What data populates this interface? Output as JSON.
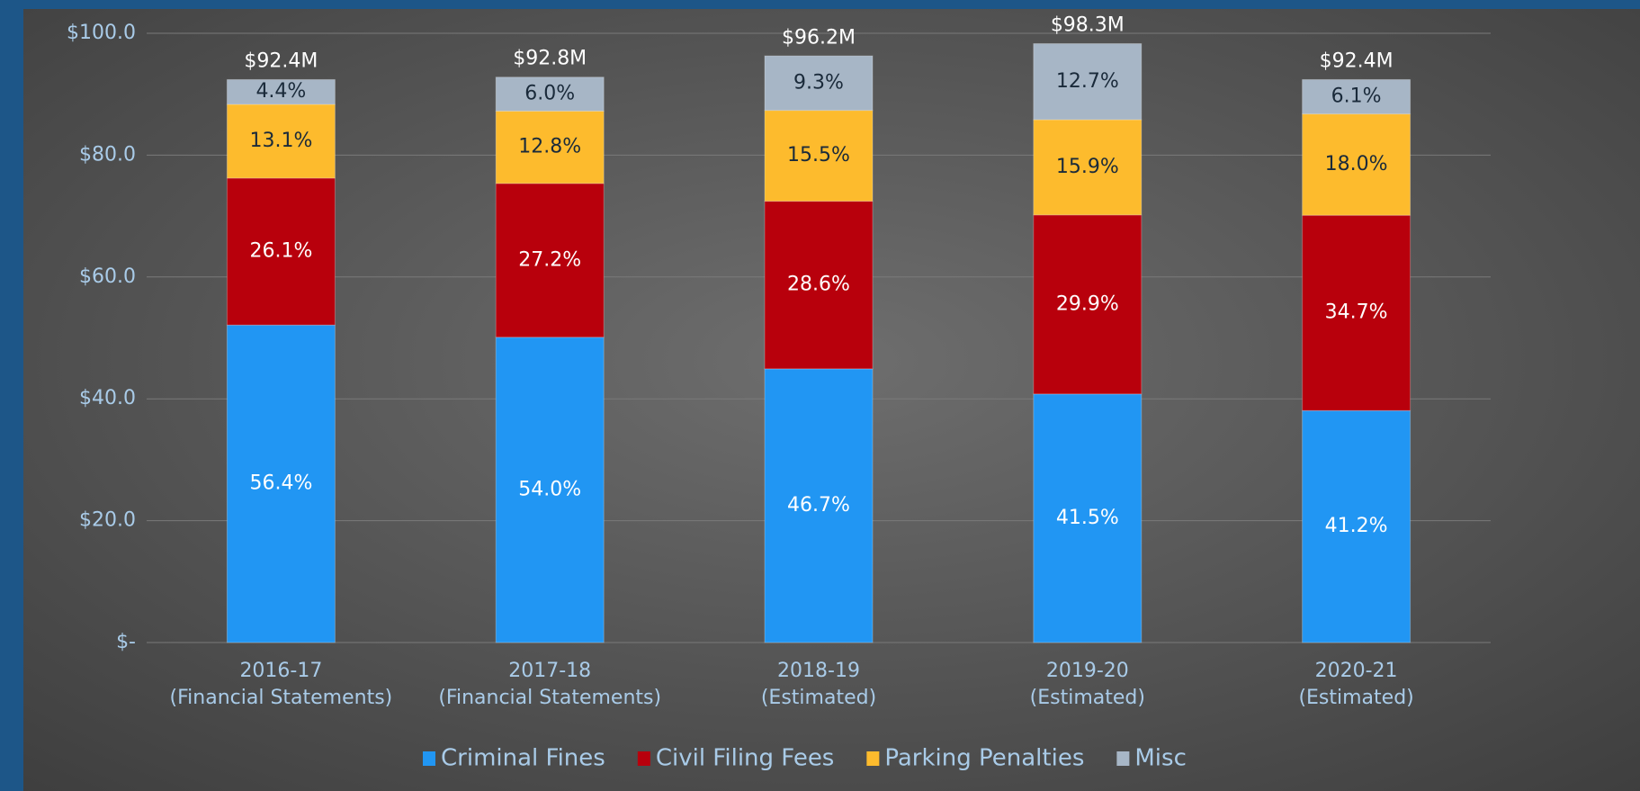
{
  "chart_data": {
    "type": "stacked_percent_bar",
    "categories": [
      [
        "2016-17",
        "(Financial Statements)"
      ],
      [
        "2017-18",
        "(Financial Statements)"
      ],
      [
        "2018-19",
        "(Estimated)"
      ],
      [
        "2019-20",
        "(Estimated)"
      ],
      [
        "2020-21",
        "(Estimated)"
      ]
    ],
    "totals": {
      "values": [
        92.4,
        92.8,
        96.2,
        98.3,
        92.4
      ],
      "value_labels": [
        "$92.4M",
        "$92.8M",
        "$96.2M",
        "$98.3M",
        "$92.4M"
      ]
    },
    "series": [
      {
        "name": "Criminal Fines",
        "color": "#2196f3",
        "label_color": "#ffffff",
        "values": [
          56.4,
          54.0,
          46.7,
          41.5,
          41.2
        ],
        "value_labels": [
          "56.4%",
          "54.0%",
          "46.7%",
          "41.5%",
          "41.2%"
        ]
      },
      {
        "name": "Civil Filing Fees",
        "color": "#b8000c",
        "label_color": "#ffffff",
        "values": [
          26.1,
          27.2,
          28.6,
          29.9,
          34.7
        ],
        "value_labels": [
          "26.1%",
          "27.2%",
          "28.6%",
          "29.9%",
          "34.7%"
        ]
      },
      {
        "name": "Parking Penalties",
        "color": "#fdbb2d",
        "label_color": "#1a2a3a",
        "values": [
          13.1,
          12.8,
          15.5,
          15.9,
          18.0
        ],
        "value_labels": [
          "13.1%",
          "12.8%",
          "15.5%",
          "15.9%",
          "18.0%"
        ]
      },
      {
        "name": "Misc",
        "color": "#a7b6c6",
        "label_color": "#1a2a3a",
        "values": [
          4.4,
          6.0,
          9.3,
          12.7,
          6.1
        ],
        "value_labels": [
          "4.4%",
          "6.0%",
          "9.3%",
          "12.7%",
          "6.1%"
        ]
      }
    ],
    "ylim": [
      0,
      100
    ],
    "yticks": [
      {
        "value": 0,
        "label": "$-"
      },
      {
        "value": 20,
        "label": "$20.0"
      },
      {
        "value": 40,
        "label": "$40.0"
      },
      {
        "value": 60,
        "label": "$60.0"
      },
      {
        "value": 80,
        "label": "$80.0"
      },
      {
        "value": 100,
        "label": "$100.0"
      }
    ],
    "grid": true,
    "legend": "bottom"
  }
}
